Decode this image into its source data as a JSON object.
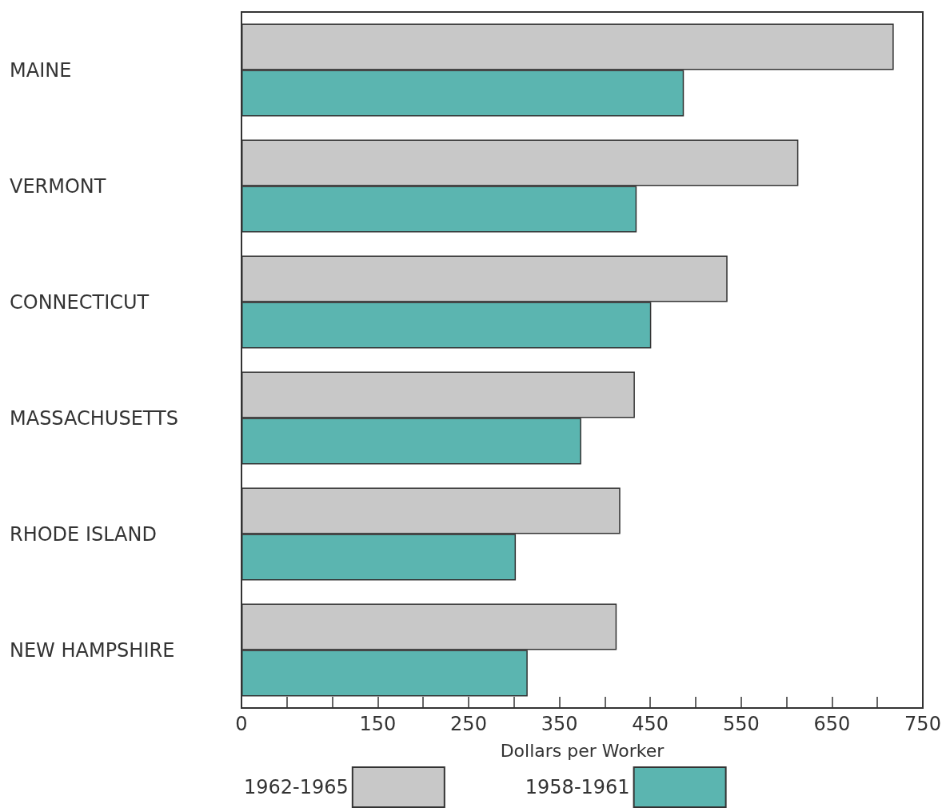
{
  "chart_data": {
    "type": "bar",
    "orientation": "horizontal",
    "xlabel": "Dollars per Worker",
    "categories": [
      "MAINE",
      "VERMONT",
      "CONNECTICUT",
      "MASSACHUSETTS",
      "RHODE ISLAND",
      "NEW HAMPSHIRE"
    ],
    "series": [
      {
        "name": "1962-1965",
        "color": "#c8c8c8",
        "values": [
          718,
          613,
          535,
          433,
          417,
          413
        ]
      },
      {
        "name": "1958-1961",
        "color": "#5bb5b0",
        "values": [
          487,
          435,
          451,
          374,
          302,
          315
        ]
      }
    ],
    "xlim": [
      0,
      750
    ],
    "xticks": [
      0,
      {
        "value": 50,
        "label": null
      },
      {
        "value": 100,
        "label": null
      },
      150,
      {
        "value": 200,
        "label": null
      },
      250,
      {
        "value": 300,
        "label": null
      },
      350,
      {
        "value": 400,
        "label": null
      },
      450,
      {
        "value": 500,
        "label": null
      },
      550,
      {
        "value": 600,
        "label": null
      },
      650,
      {
        "value": 700,
        "label": null
      },
      750
    ],
    "grid": false,
    "legend": "bottom"
  }
}
